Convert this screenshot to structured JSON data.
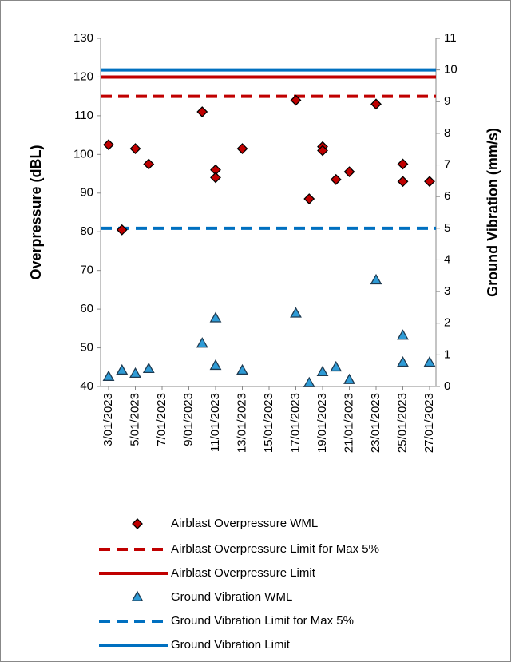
{
  "chart_data": {
    "type": "scatter",
    "ylabel": "Overpressure (dBL)",
    "y2label": "Ground Vibration (mm/s)",
    "ylim": [
      40,
      130
    ],
    "yticks": [
      40,
      50,
      60,
      70,
      80,
      90,
      100,
      110,
      120,
      130
    ],
    "y2lim": [
      0,
      11
    ],
    "y2ticks": [
      0,
      1,
      2,
      3,
      4,
      5,
      6,
      7,
      8,
      9,
      10,
      11
    ],
    "xlim": [
      "3/01/2023",
      "27/01/2023"
    ],
    "xticks": [
      "3/01/2023",
      "5/01/2023",
      "7/01/2023",
      "9/01/2023",
      "11/01/2023",
      "13/01/2023",
      "15/01/2023",
      "17/01/2023",
      "19/01/2023",
      "21/01/2023",
      "23/01/2023",
      "25/01/2023",
      "27/01/2023"
    ],
    "grid": false,
    "series": [
      {
        "name": "Airblast Overpressure WML",
        "color": "#c00000",
        "marker": "diamond",
        "axis": "y",
        "x": [
          "3/01/2023",
          "4/01/2023",
          "5/01/2023",
          "6/01/2023",
          "10/01/2023",
          "11/01/2023",
          "11/01/2023",
          "13/01/2023",
          "17/01/2023",
          "18/01/2023",
          "19/01/2023",
          "19/01/2023",
          "20/01/2023",
          "21/01/2023",
          "23/01/2023",
          "25/01/2023",
          "25/01/2023",
          "27/01/2023"
        ],
        "values": [
          102.5,
          80.5,
          101.5,
          97.5,
          111,
          96,
          94,
          101.5,
          114,
          88.5,
          102,
          101,
          93.5,
          95.5,
          113,
          97.5,
          93,
          93
        ]
      },
      {
        "name": "Airblast Overpressure Limit for Max 5%",
        "color": "#c00000",
        "style": "dashed",
        "axis": "y",
        "value": 115
      },
      {
        "name": "Airblast Overpressure Limit",
        "color": "#c00000",
        "style": "solid",
        "axis": "y",
        "value": 120
      },
      {
        "name": "Ground Vibration WML",
        "color": "#2e9bd6",
        "marker": "triangle",
        "axis": "y2",
        "x": [
          "3/01/2023",
          "4/01/2023",
          "5/01/2023",
          "6/01/2023",
          "10/01/2023",
          "11/01/2023",
          "11/01/2023",
          "13/01/2023",
          "17/01/2023",
          "18/01/2023",
          "19/01/2023",
          "20/01/2023",
          "21/01/2023",
          "23/01/2023",
          "25/01/2023",
          "25/01/2023",
          "27/01/2023"
        ],
        "values": [
          0.3,
          0.5,
          0.4,
          0.55,
          1.35,
          2.15,
          0.65,
          0.5,
          2.3,
          0.1,
          0.45,
          0.6,
          0.2,
          3.35,
          1.6,
          0.75,
          0.75
        ]
      },
      {
        "name": "Ground Vibration Limit for Max 5%",
        "color": "#0070c0",
        "style": "dashed",
        "axis": "y2",
        "value": 5
      },
      {
        "name": "Ground Vibration Limit",
        "color": "#0070c0",
        "style": "solid",
        "axis": "y2",
        "value": 10
      }
    ]
  }
}
